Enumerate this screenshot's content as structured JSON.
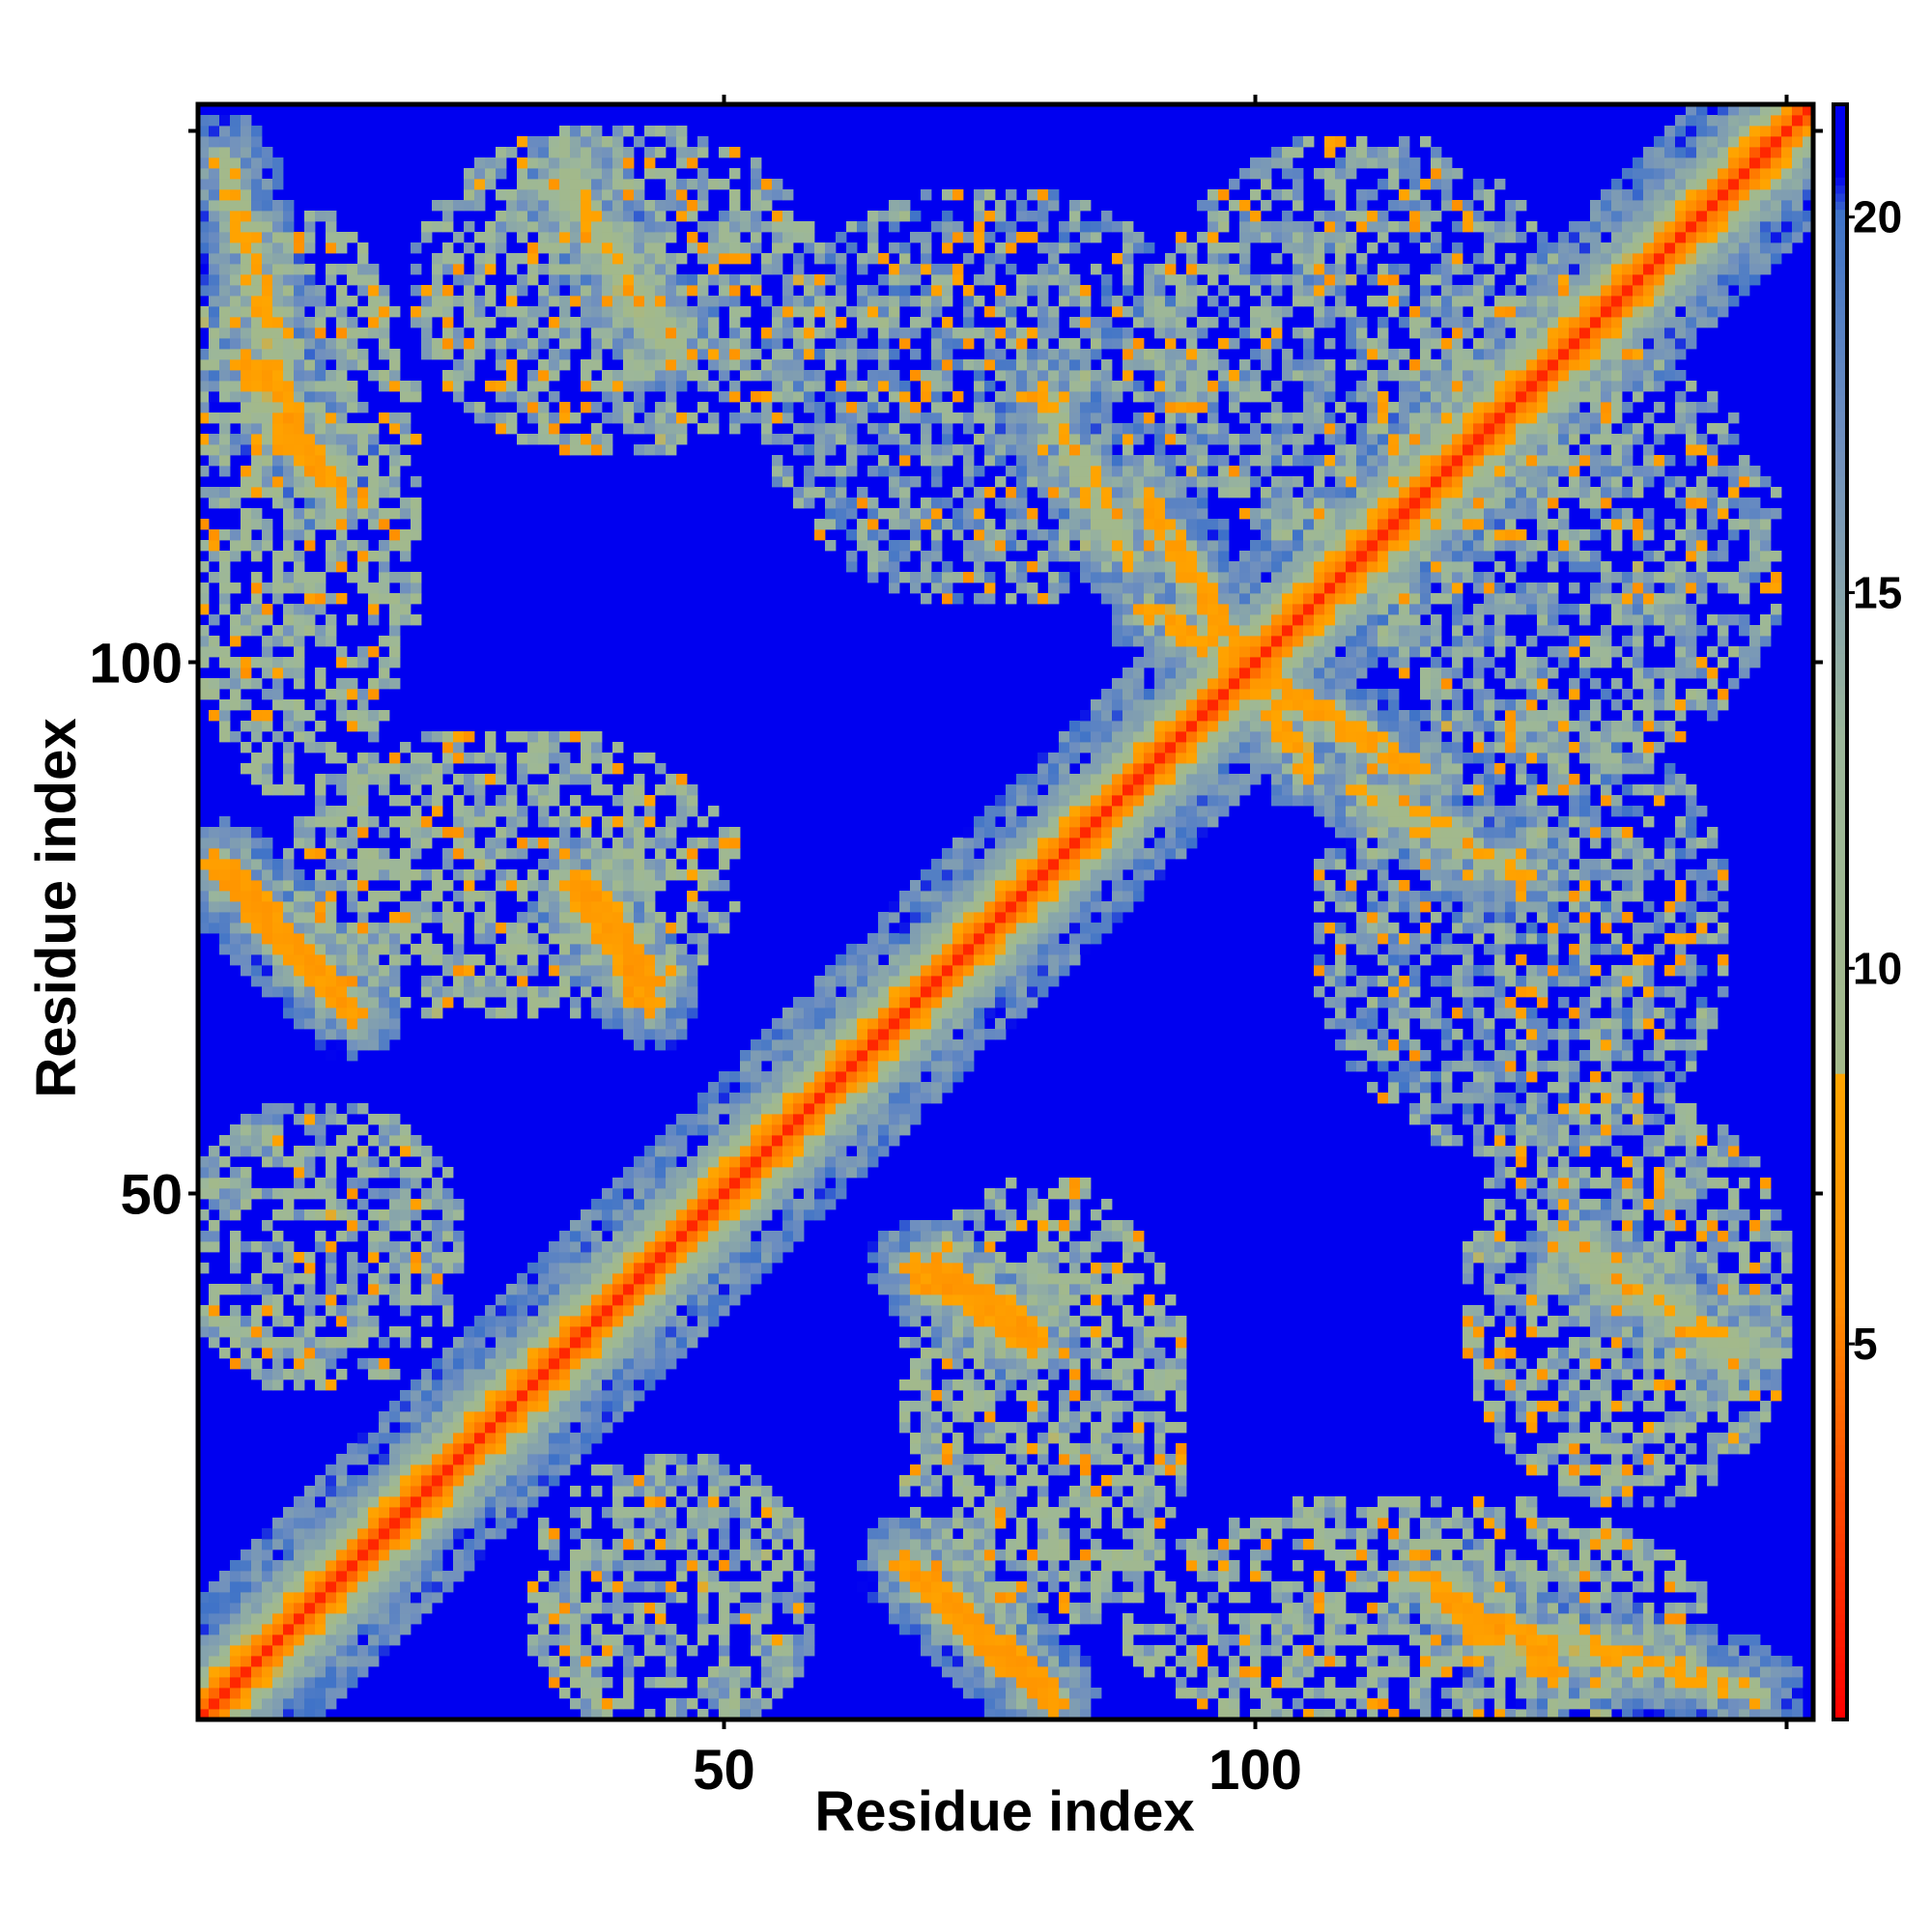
{
  "chart_data": {
    "type": "heatmap",
    "title": "",
    "xlabel": "Residue index",
    "ylabel": "Residue index",
    "n_residues": 152,
    "xlim": [
      1,
      152
    ],
    "ylim": [
      1,
      152
    ],
    "x_ticks": [
      50,
      100
    ],
    "y_ticks": [
      50,
      100
    ],
    "colorbar": {
      "ticks": [
        5,
        10,
        15,
        20
      ],
      "range": [
        0,
        21.5
      ],
      "color_stops": [
        {
          "value": 0,
          "color": "#ff0000"
        },
        {
          "value": 5.5,
          "color": "#ff8c00"
        },
        {
          "value": 8.5,
          "color": "#ffa500"
        },
        {
          "value": 8.6,
          "color": "#a3b98a"
        },
        {
          "value": 13,
          "color": "#9cb79a"
        },
        {
          "value": 17,
          "color": "#6f8fbf"
        },
        {
          "value": 20,
          "color": "#3f73c8"
        },
        {
          "value": 20.5,
          "color": "#0000f0"
        }
      ],
      "out_of_range_color": "#0000f0"
    },
    "features": {
      "diagonal": {
        "value": 1.5
      },
      "diagonal_band": [
        {
          "offset": 1,
          "value": 3.5
        },
        {
          "offset": 2,
          "value": 5.8
        },
        {
          "offset": 3,
          "value": 8.0
        },
        {
          "offset": 4,
          "value": 11.0
        },
        {
          "offset": 6,
          "value": 14.0
        }
      ],
      "contact_streaks": [
        {
          "from": [
            2,
            81
          ],
          "to": [
            14,
            68
          ],
          "value": 6.5
        },
        {
          "from": [
            37,
            79
          ],
          "to": [
            43,
            70
          ],
          "value": 6.5
        },
        {
          "from": [
            68,
            43
          ],
          "to": [
            79,
            36
          ],
          "value": 6.5
        },
        {
          "from": [
            67,
            15
          ],
          "to": [
            80,
            4
          ],
          "value": 6.5
        },
        {
          "from": [
            117,
            13
          ],
          "to": [
            128,
            5
          ],
          "value": 7.0
        },
        {
          "from": [
            3,
            147
          ],
          "to": [
            10,
            120
          ],
          "value": 7.5
        },
        {
          "from": [
            35,
            145
          ],
          "to": [
            45,
            130
          ],
          "value": 8.5
        },
        {
          "from": [
            90,
            105
          ],
          "to": [
            115,
            90
          ],
          "value": 7.0
        },
        {
          "from": [
            110,
            88
          ],
          "to": [
            125,
            80
          ],
          "value": 8.0
        },
        {
          "from": [
            133,
            42
          ],
          "to": [
            145,
            36
          ],
          "value": 8.0
        }
      ],
      "contact_regions": [
        {
          "center": [
            12,
            45
          ],
          "rx": 14,
          "ry": 14,
          "value": 14
        },
        {
          "center": [
            45,
            12
          ],
          "rx": 14,
          "ry": 14,
          "value": 14
        },
        {
          "center": [
            10,
            115
          ],
          "rx": 12,
          "ry": 28,
          "value": 13
        },
        {
          "center": [
            40,
            135
          ],
          "rx": 20,
          "ry": 16,
          "value": 14
        },
        {
          "center": [
            75,
            125
          ],
          "rx": 22,
          "ry": 20,
          "value": 16
        },
        {
          "center": [
            125,
            75
          ],
          "rx": 16,
          "ry": 40,
          "value": 15
        },
        {
          "center": [
            95,
            25
          ],
          "rx": 30,
          "ry": 25,
          "value": 15
        },
        {
          "center": [
            30,
            80
          ],
          "rx": 22,
          "ry": 14,
          "value": 13
        },
        {
          "center": [
            80,
            30
          ],
          "rx": 14,
          "ry": 22,
          "value": 13
        },
        {
          "center": [
            130,
            110
          ],
          "rx": 20,
          "ry": 20,
          "value": 15
        },
        {
          "center": [
            110,
            130
          ],
          "rx": 20,
          "ry": 20,
          "value": 15
        }
      ]
    }
  }
}
